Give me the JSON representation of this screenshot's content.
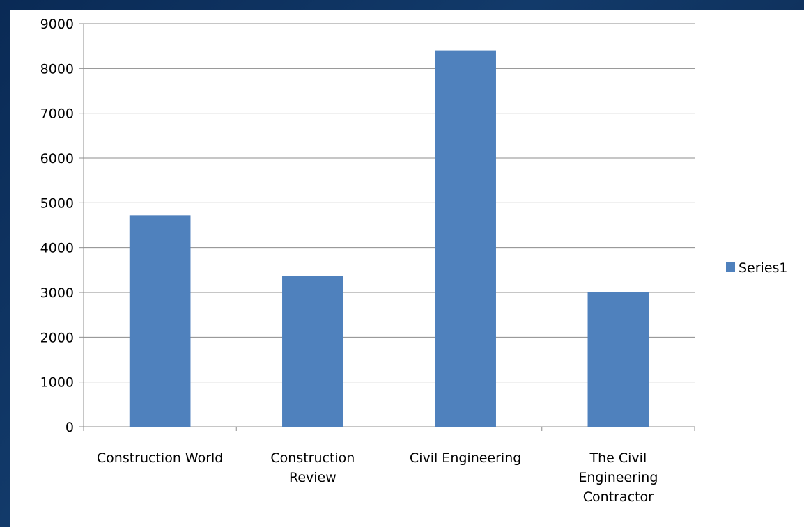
{
  "chart_data": {
    "type": "bar",
    "categories": [
      [
        "Construction World"
      ],
      [
        "Construction",
        "Review"
      ],
      [
        "Civil Engineering"
      ],
      [
        "The Civil",
        "Engineering",
        "Contractor"
      ]
    ],
    "series": [
      {
        "name": "Series1",
        "values": [
          4720,
          3370,
          8400,
          3000
        ],
        "color": "#4f81bd"
      }
    ],
    "ylim": [
      0,
      9000
    ],
    "yticks": [
      "0",
      "1000",
      "2000",
      "3000",
      "4000",
      "5000",
      "6000",
      "7000",
      "8000",
      "9000"
    ],
    "grid": true,
    "legend": "right"
  }
}
